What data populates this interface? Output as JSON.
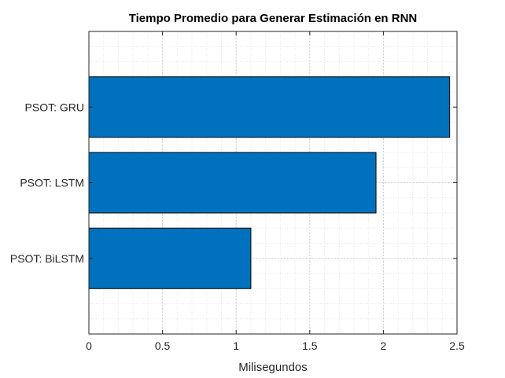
{
  "chart_data": {
    "type": "bar",
    "orientation": "horizontal",
    "title": "Tiempo Promedio para Generar Estimación en RNN",
    "xlabel": "Milisegundos",
    "ylabel": "",
    "categories": [
      "PSOT: GRU",
      "PSOT: LSTM",
      "PSOT: BiLSTM"
    ],
    "values": [
      2.45,
      1.95,
      1.1
    ],
    "xlim": [
      0,
      2.5
    ],
    "xticks": [
      "0",
      "0.5",
      "1",
      "1.5",
      "2",
      "2.5"
    ],
    "grid": "on (major and minor, dotted)",
    "legend": "none",
    "colors": {
      "bar": "#0072BD",
      "bar_edge": "#000000",
      "axis": "#262626",
      "grid": "#dcdcdc"
    }
  }
}
